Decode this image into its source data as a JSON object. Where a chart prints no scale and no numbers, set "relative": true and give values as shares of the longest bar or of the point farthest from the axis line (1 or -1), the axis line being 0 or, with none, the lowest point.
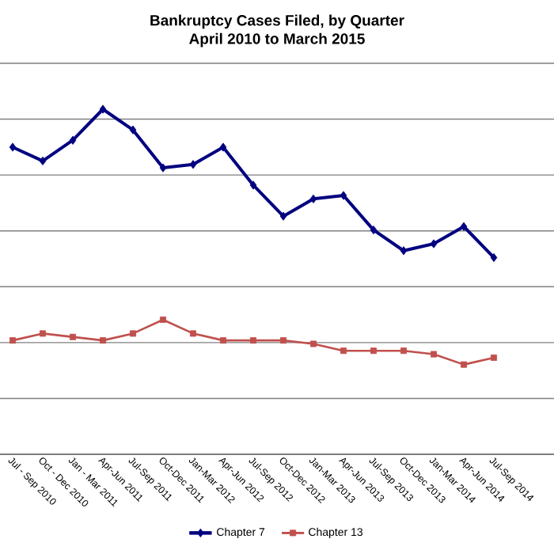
{
  "chart_data": {
    "type": "line",
    "title": "Bankruptcy Cases Filed, by Quarter",
    "subtitle": "April 2010 to March 2015",
    "categories": [
      "Jul - Sep 2010",
      "Oct - Dec 2010",
      "Jan - Mar 2011",
      "Apr-Jun 2011",
      "Jul-Sep 2011",
      "Oct-Dec 2011",
      "Jan-Mar 2012",
      "Apr-Jun 2012",
      "Jul-Sep 2012",
      "Oct-Dec 2012",
      "Jan-Mar 2013",
      "Apr-Jun 2013",
      "Jul-Sep 2013",
      "Oct-Dec 2013",
      "Jan-Mar 2014",
      "Apr-Jun 2014",
      "Jul-Sep 2014"
    ],
    "relative": true,
    "series": [
      {
        "name": "Chapter 7",
        "color": "#000080",
        "marker": "diamond",
        "values": [
          0.89,
          0.85,
          0.91,
          1.0,
          0.94,
          0.83,
          0.84,
          0.89,
          0.78,
          0.69,
          0.74,
          0.75,
          0.65,
          0.59,
          0.61,
          0.66,
          0.57
        ]
      },
      {
        "name": "Chapter 13",
        "color": "#c0504d",
        "marker": "square",
        "values": [
          0.33,
          0.35,
          0.34,
          0.33,
          0.35,
          0.39,
          0.35,
          0.33,
          0.33,
          0.33,
          0.32,
          0.3,
          0.3,
          0.3,
          0.29,
          0.26,
          0.28
        ]
      }
    ],
    "grid": "y",
    "legend": "bottom"
  }
}
